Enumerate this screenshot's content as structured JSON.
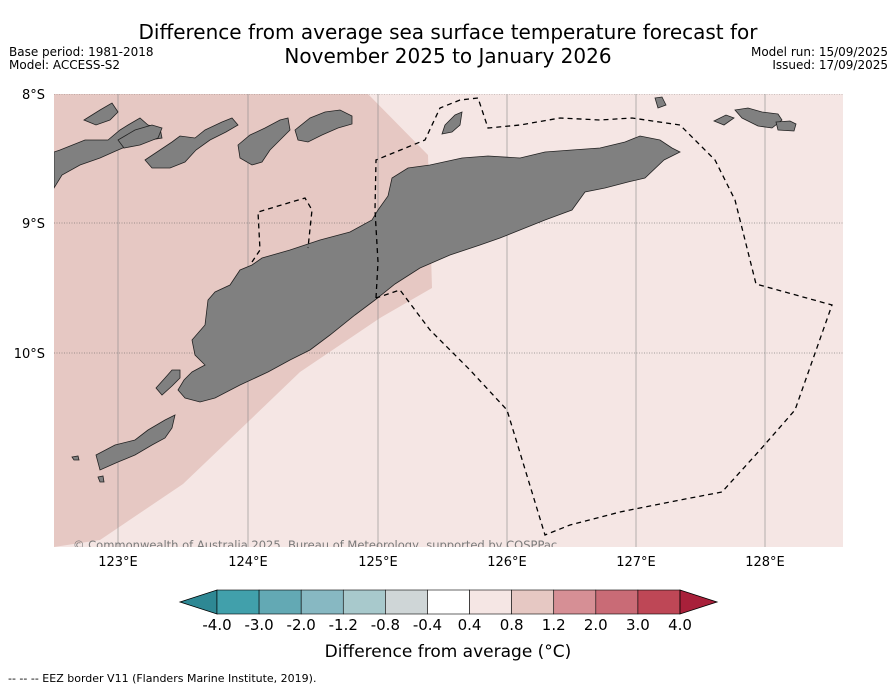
{
  "header": {
    "title_line1": "Difference from average sea surface temperature forecast for",
    "title_line2": "November 2025 to January 2026",
    "base_period": "Base period: 1981-2018",
    "model": "Model: ACCESS-S2",
    "model_run": "Model run: 15/09/2025",
    "issued": "Issued: 17/09/2025"
  },
  "map": {
    "lat_labels": [
      "8°S",
      "9°S",
      "10°S"
    ],
    "lon_labels": [
      "123°E",
      "124°E",
      "125°E",
      "126°E",
      "127°E",
      "128°E"
    ],
    "copyright": "© Commonwealth of Australia 2025, Bureau of Meteorology, supported by COSPPac",
    "colors": {
      "land": "#808080",
      "anomaly_0_8_to_1_2": "#e6c8c3",
      "anomaly_0_4_to_0_8": "#f5e6e4",
      "eez": "#000000"
    }
  },
  "colorbar": {
    "ticks": [
      "-4.0",
      "-3.0",
      "-2.0",
      "-1.2",
      "-0.8",
      "-0.4",
      "0.4",
      "0.8",
      "1.2",
      "2.0",
      "3.0",
      "4.0"
    ],
    "colors": [
      "#41a0ab",
      "#63a9b4",
      "#87b8c2",
      "#a8c9cc",
      "#cfd6d7",
      "#ffffff",
      "#f5e6e4",
      "#e6c8c3",
      "#d68f95",
      "#c96b76",
      "#be4756"
    ],
    "under_color": "#2e8894",
    "over_color": "#a8203a",
    "label": "Difference from average (°C)"
  },
  "footer": "--  --  -- EEZ border V11 (Flanders Marine Institute, 2019)."
}
